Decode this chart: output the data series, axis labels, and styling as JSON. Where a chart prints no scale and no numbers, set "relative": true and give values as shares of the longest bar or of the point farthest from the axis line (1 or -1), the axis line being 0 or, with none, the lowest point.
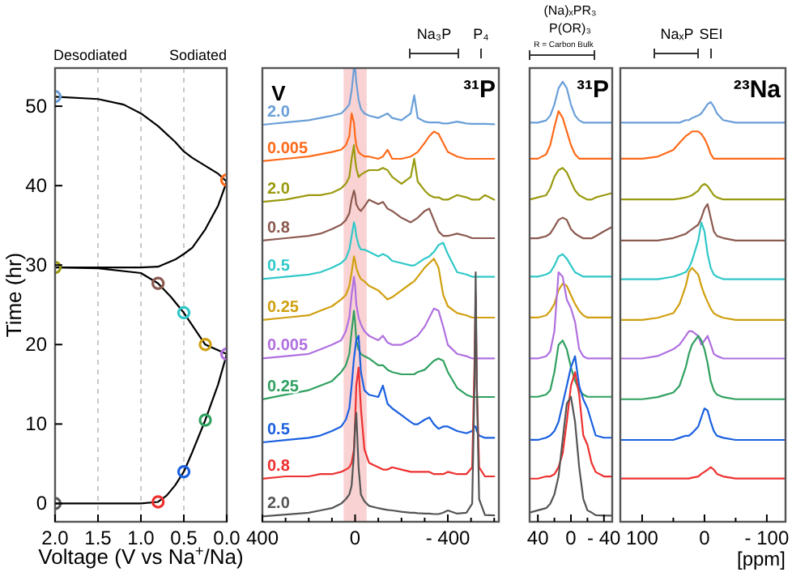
{
  "chart_data": [
    {
      "type": "line",
      "xlabel": "Voltage (V vs Na$^{+}$/Na)",
      "ylabel": "Time (hr)",
      "xlim": [
        2.0,
        0.0
      ],
      "ylim": [
        -2.3,
        54.8
      ],
      "grid": "x",
      "xticks": [
        {
          "value": 2,
          "label": "2.0"
        },
        {
          "value": 1.5,
          "label": "1.5"
        },
        {
          "value": 1,
          "label": "1.0"
        },
        {
          "value": 0.5,
          "label": "0.5"
        },
        {
          "value": 0,
          "label": "0.0"
        }
      ],
      "yticks": [
        0,
        10,
        20,
        30,
        40,
        50
      ],
      "annotations": [
        "Desodiated",
        "Sodiated"
      ],
      "series": [
        {
          "color": "#000000",
          "x": [
            2.0,
            1.5,
            1.0,
            0.8,
            0.7,
            0.6,
            0.5,
            0.4,
            0.25,
            0.1,
            0.0,
            0.25,
            0.5,
            0.65,
            0.8,
            1.0,
            1.5,
            2.0,
            1.5,
            1.0,
            0.8,
            0.6,
            0.5,
            0.4,
            0.25,
            0.1,
            0.0,
            0.1,
            0.25,
            0.4,
            0.5,
            0.6,
            0.8,
            1.0,
            1.2,
            1.5,
            2.0
          ],
          "values": [
            0,
            0,
            0,
            0.2,
            1.0,
            2.3,
            4.0,
            6.5,
            10.5,
            15,
            18.8,
            20,
            24,
            26,
            27.7,
            29.0,
            29.6,
            29.7,
            29.7,
            29.7,
            29.8,
            30.7,
            31.4,
            32.2,
            34.5,
            37.5,
            40.5,
            41.5,
            42.5,
            43.5,
            44.3,
            45.5,
            47.5,
            49.1,
            50.2,
            50.9,
            51.2
          ]
        },
        {
          "type": "scatter",
          "marker": "circle",
          "x": [
            2.0,
            0.8,
            0.5,
            0.25,
            0.0,
            0.25,
            0.5,
            0.8,
            2.0,
            0.0,
            2.0
          ],
          "values": [
            0,
            0.2,
            4.0,
            10.5,
            18.8,
            20,
            24,
            27.7,
            29.7,
            40.7,
            51.2
          ],
          "colors": [
            "#555555",
            "#ee3030",
            "#1a60e0",
            "#30a060",
            "#b070e0",
            "#d0a010",
            "#30c8c8",
            "#8b5a50",
            "#9a9a10",
            "#ff6a1a",
            "#6a9fd8"
          ]
        }
      ]
    },
    {
      "type": "line",
      "relative": true,
      "xlim": [
        400,
        -620
      ],
      "xticks": [
        400,
        {
          "value": 300,
          "label": null
        },
        {
          "value": 200,
          "label": null
        },
        {
          "value": 100,
          "label": null
        },
        0,
        {
          "value": -100,
          "label": null
        },
        {
          "value": -200,
          "label": null
        },
        {
          "value": -300,
          "label": null
        },
        {
          "value": -400,
          "label": "- 400"
        },
        {
          "value": -500,
          "label": null
        },
        {
          "value": -600,
          "label": null
        }
      ],
      "annotations": [
        "V",
        "Na₃P",
        "P₄",
        "³¹P"
      ],
      "bands": [
        {
          "axis": "x",
          "from": 50,
          "to": -50,
          "color": "#f8c8c8"
        }
      ],
      "x": [
        400,
        300,
        200,
        150,
        100,
        60,
        40,
        25,
        15,
        5,
        0,
        -5,
        -15,
        -25,
        -40,
        -60,
        -100,
        -120,
        -140,
        -160,
        -200,
        -240,
        -255,
        -270,
        -300,
        -320,
        -340,
        -360,
        -380,
        -400,
        -440,
        -480,
        -505,
        -515,
        -520,
        -525,
        -535,
        -560,
        -600
      ],
      "series": [
        {
          "name": "2.0",
          "color": "#6a9fd8",
          "values": [
            0.875,
            0.88,
            0.885,
            0.89,
            0.895,
            0.9,
            0.91,
            0.92,
            0.95,
            1.0,
            1.0,
            0.97,
            0.93,
            0.91,
            0.9,
            0.895,
            0.89,
            0.895,
            0.9,
            0.89,
            0.885,
            0.9,
            0.94,
            0.89,
            0.882,
            0.88,
            0.88,
            0.88,
            0.878,
            0.878,
            0.882,
            0.878,
            0.877,
            0.877,
            0.877,
            0.877,
            0.877,
            0.877,
            0.876
          ]
        },
        {
          "name": "0.005",
          "color": "#ff6a1a",
          "values": [
            0.795,
            0.8,
            0.805,
            0.81,
            0.815,
            0.82,
            0.83,
            0.85,
            0.9,
            0.88,
            0.85,
            0.83,
            0.815,
            0.81,
            0.805,
            0.805,
            0.8,
            0.805,
            0.82,
            0.8,
            0.8,
            0.805,
            0.81,
            0.815,
            0.835,
            0.85,
            0.86,
            0.855,
            0.835,
            0.815,
            0.805,
            0.8,
            0.8,
            0.8,
            0.8,
            0.8,
            0.8,
            0.8,
            0.8
          ]
        },
        {
          "name": "2.0",
          "color": "#9a9a10",
          "values": [
            0.705,
            0.71,
            0.72,
            0.72,
            0.725,
            0.735,
            0.745,
            0.76,
            0.8,
            0.83,
            0.8,
            0.78,
            0.76,
            0.765,
            0.77,
            0.775,
            0.775,
            0.78,
            0.775,
            0.76,
            0.745,
            0.76,
            0.8,
            0.75,
            0.73,
            0.72,
            0.715,
            0.715,
            0.71,
            0.71,
            0.72,
            0.715,
            0.71,
            0.71,
            0.71,
            0.71,
            0.71,
            0.72,
            0.71
          ]
        },
        {
          "name": "0.8",
          "color": "#8b5a50",
          "values": [
            0.62,
            0.625,
            0.63,
            0.635,
            0.645,
            0.655,
            0.665,
            0.68,
            0.71,
            0.73,
            0.72,
            0.7,
            0.69,
            0.685,
            0.695,
            0.71,
            0.7,
            0.705,
            0.69,
            0.685,
            0.67,
            0.66,
            0.665,
            0.67,
            0.685,
            0.69,
            0.665,
            0.64,
            0.63,
            0.63,
            0.635,
            0.63,
            0.625,
            0.625,
            0.625,
            0.625,
            0.625,
            0.625,
            0.625
          ]
        },
        {
          "name": "0.5",
          "color": "#30c8c8",
          "values": [
            0.535,
            0.54,
            0.545,
            0.55,
            0.56,
            0.57,
            0.58,
            0.6,
            0.63,
            0.66,
            0.65,
            0.63,
            0.61,
            0.6,
            0.6,
            0.595,
            0.585,
            0.59,
            0.585,
            0.575,
            0.57,
            0.565,
            0.565,
            0.57,
            0.58,
            0.585,
            0.595,
            0.61,
            0.615,
            0.59,
            0.55,
            0.545,
            0.54,
            0.54,
            0.54,
            0.54,
            0.54,
            0.54,
            0.54
          ]
        },
        {
          "name": "0.25",
          "color": "#d0a010",
          "values": [
            0.445,
            0.45,
            0.455,
            0.465,
            0.475,
            0.49,
            0.5,
            0.52,
            0.55,
            0.585,
            0.575,
            0.56,
            0.545,
            0.535,
            0.53,
            0.52,
            0.51,
            0.5,
            0.49,
            0.495,
            0.51,
            0.525,
            0.53,
            0.54,
            0.56,
            0.57,
            0.58,
            0.56,
            0.5,
            0.475,
            0.46,
            0.455,
            0.45,
            0.45,
            0.45,
            0.45,
            0.45,
            0.45,
            0.45
          ]
        },
        {
          "name": "0.005",
          "color": "#b070e0",
          "values": [
            0.36,
            0.365,
            0.37,
            0.38,
            0.39,
            0.4,
            0.42,
            0.45,
            0.5,
            0.54,
            0.52,
            0.48,
            0.45,
            0.435,
            0.42,
            0.41,
            0.4,
            0.41,
            0.395,
            0.39,
            0.39,
            0.4,
            0.405,
            0.41,
            0.43,
            0.45,
            0.47,
            0.465,
            0.43,
            0.39,
            0.37,
            0.365,
            0.36,
            0.36,
            0.36,
            0.36,
            0.36,
            0.36,
            0.36
          ]
        },
        {
          "name": "0.25",
          "color": "#30a060",
          "values": [
            0.27,
            0.28,
            0.29,
            0.3,
            0.31,
            0.33,
            0.345,
            0.37,
            0.42,
            0.465,
            0.44,
            0.4,
            0.38,
            0.37,
            0.365,
            0.36,
            0.345,
            0.345,
            0.335,
            0.33,
            0.325,
            0.325,
            0.325,
            0.33,
            0.335,
            0.345,
            0.355,
            0.36,
            0.355,
            0.33,
            0.295,
            0.28,
            0.275,
            0.275,
            0.275,
            0.275,
            0.275,
            0.275,
            0.275
          ]
        },
        {
          "name": "0.5",
          "color": "#1a60e0",
          "values": [
            0.175,
            0.18,
            0.185,
            0.19,
            0.2,
            0.21,
            0.225,
            0.25,
            0.3,
            0.36,
            0.38,
            0.4,
            0.41,
            0.33,
            0.29,
            0.28,
            0.275,
            0.3,
            0.26,
            0.25,
            0.235,
            0.22,
            0.215,
            0.215,
            0.225,
            0.23,
            0.215,
            0.205,
            0.21,
            0.21,
            0.2,
            0.195,
            0.2,
            0.21,
            0.21,
            0.2,
            0.19,
            0.185,
            0.185
          ]
        },
        {
          "name": "0.8",
          "color": "#ee3030",
          "values": [
            0.095,
            0.1,
            0.1,
            0.105,
            0.105,
            0.11,
            0.115,
            0.12,
            0.13,
            0.16,
            0.22,
            0.3,
            0.34,
            0.25,
            0.16,
            0.13,
            0.12,
            0.115,
            0.115,
            0.12,
            0.115,
            0.11,
            0.11,
            0.11,
            0.11,
            0.11,
            0.105,
            0.105,
            0.105,
            0.11,
            0.105,
            0.105,
            0.12,
            0.35,
            0.5,
            0.3,
            0.12,
            0.1,
            0.1
          ]
        },
        {
          "name": "2.0",
          "color": "#555555",
          "values": [
            0.012,
            0.016,
            0.02,
            0.025,
            0.03,
            0.04,
            0.05,
            0.06,
            0.08,
            0.15,
            0.21,
            0.24,
            0.12,
            0.06,
            0.045,
            0.035,
            0.03,
            0.028,
            0.026,
            0.025,
            0.022,
            0.02,
            0.02,
            0.019,
            0.018,
            0.018,
            0.017,
            0.017,
            0.02,
            0.025,
            0.018,
            0.02,
            0.04,
            0.3,
            0.55,
            0.3,
            0.05,
            0.015,
            0.014
          ]
        }
      ]
    },
    {
      "type": "line",
      "relative": true,
      "xlim": [
        50,
        -50
      ],
      "xticks": [
        40,
        {
          "value": 20,
          "label": null
        },
        0,
        {
          "value": -20,
          "label": null
        },
        {
          "value": -40,
          "label": "- 40"
        }
      ],
      "annotations": [
        "(Na)ₓPR₃",
        "P(OR)₃",
        "R = Carbon Bulk",
        "³¹P"
      ],
      "x": [
        50,
        40,
        30,
        25,
        20,
        15,
        10,
        5,
        0,
        -5,
        -10,
        -15,
        -20,
        -25,
        -30,
        -40,
        -50
      ],
      "series": [
        {
          "color": "#6a9fd8",
          "values": [
            0.907,
            0.907,
            0.912,
            0.923,
            0.948,
            0.985,
            1.0,
            0.985,
            0.948,
            0.923,
            0.912,
            0.907,
            0.907,
            0.907,
            0.907,
            0.907,
            0.907
          ]
        },
        {
          "color": "#ff6a1a",
          "values": [
            0.825,
            0.825,
            0.835,
            0.856,
            0.897,
            0.933,
            0.918,
            0.887,
            0.856,
            0.835,
            0.825,
            0.825,
            0.825,
            0.825,
            0.825,
            0.825,
            0.825
          ]
        },
        {
          "color": "#9a9a10",
          "values": [
            0.732,
            0.737,
            0.742,
            0.758,
            0.784,
            0.799,
            0.804,
            0.794,
            0.773,
            0.753,
            0.742,
            0.737,
            0.732,
            0.732,
            0.737,
            0.742,
            0.747
          ]
        },
        {
          "color": "#8b5a50",
          "values": [
            0.644,
            0.644,
            0.649,
            0.655,
            0.67,
            0.686,
            0.691,
            0.686,
            0.665,
            0.655,
            0.649,
            0.644,
            0.644,
            0.644,
            0.649,
            0.66,
            0.67
          ]
        },
        {
          "color": "#30c8c8",
          "values": [
            0.557,
            0.557,
            0.562,
            0.567,
            0.582,
            0.603,
            0.608,
            0.598,
            0.582,
            0.567,
            0.562,
            0.557,
            0.557,
            0.557,
            0.557,
            0.557,
            0.557
          ]
        },
        {
          "color": "#d0a010",
          "values": [
            0.464,
            0.464,
            0.469,
            0.479,
            0.495,
            0.526,
            0.541,
            0.536,
            0.515,
            0.495,
            0.479,
            0.469,
            0.464,
            0.464,
            0.464,
            0.464,
            0.464
          ]
        },
        {
          "color": "#b070e0",
          "values": [
            0.371,
            0.371,
            0.376,
            0.387,
            0.433,
            0.567,
            0.557,
            0.505,
            0.485,
            0.454,
            0.392,
            0.376,
            0.371,
            0.371,
            0.371,
            0.371,
            0.371
          ]
        },
        {
          "color": "#30a060",
          "values": [
            0.284,
            0.284,
            0.289,
            0.299,
            0.34,
            0.402,
            0.412,
            0.392,
            0.351,
            0.32,
            0.299,
            0.289,
            0.284,
            0.284,
            0.284,
            0.284,
            0.284
          ]
        },
        {
          "color": "#1a60e0",
          "values": [
            0.186,
            0.186,
            0.191,
            0.196,
            0.206,
            0.227,
            0.268,
            0.309,
            0.351,
            0.376,
            0.309,
            0.278,
            0.258,
            0.227,
            0.196,
            0.191,
            0.191
          ]
        },
        {
          "color": "#ee3030",
          "values": [
            0.098,
            0.098,
            0.103,
            0.103,
            0.108,
            0.124,
            0.155,
            0.227,
            0.309,
            0.34,
            0.289,
            0.196,
            0.175,
            0.134,
            0.113,
            0.103,
            0.103
          ]
        },
        {
          "color": "#555555",
          "values": [
            0.021,
            0.026,
            0.031,
            0.041,
            0.062,
            0.103,
            0.186,
            0.268,
            0.284,
            0.227,
            0.124,
            0.052,
            0.026,
            0.021,
            0.015,
            0.014,
            0.014
          ]
        }
      ]
    },
    {
      "type": "line",
      "relative": true,
      "xlim": [
        135,
        -130
      ],
      "xlabel": "[ppm]",
      "xticks": [
        100,
        {
          "value": 50,
          "label": null
        },
        0,
        {
          "value": -50,
          "label": null
        },
        {
          "value": -100,
          "label": "- 100"
        }
      ],
      "annotations": [
        "NaₓP",
        "SEI",
        "²³Na"
      ],
      "x": [
        135,
        100,
        75,
        50,
        40,
        30,
        25,
        20,
        10,
        5,
        0,
        -5,
        -10,
        -15,
        -20,
        -30,
        -50,
        -75,
        -100,
        -130
      ],
      "series": [
        {
          "color": "#6a9fd8",
          "values": [
            0.951,
            0.951,
            0.951,
            0.951,
            0.951,
            0.957,
            0.957,
            0.962,
            0.968,
            0.973,
            0.984,
            0.995,
            1.0,
            0.989,
            0.973,
            0.957,
            0.951,
            0.951,
            0.951,
            0.951
          ]
        },
        {
          "color": "#ff6a1a",
          "values": [
            0.865,
            0.865,
            0.87,
            0.886,
            0.903,
            0.919,
            0.924,
            0.93,
            0.93,
            0.924,
            0.913,
            0.897,
            0.876,
            0.865,
            0.865,
            0.865,
            0.865,
            0.865,
            0.865,
            0.865
          ]
        },
        {
          "color": "#9a9a10",
          "values": [
            0.768,
            0.768,
            0.768,
            0.768,
            0.77,
            0.773,
            0.775,
            0.778,
            0.789,
            0.8,
            0.805,
            0.8,
            0.789,
            0.778,
            0.773,
            0.768,
            0.768,
            0.768,
            0.768,
            0.768
          ]
        },
        {
          "color": "#8b5a50",
          "values": [
            0.67,
            0.67,
            0.67,
            0.676,
            0.681,
            0.686,
            0.692,
            0.697,
            0.708,
            0.724,
            0.746,
            0.757,
            0.724,
            0.692,
            0.681,
            0.676,
            0.67,
            0.67,
            0.67,
            0.67
          ]
        },
        {
          "color": "#30c8c8",
          "values": [
            0.578,
            0.578,
            0.578,
            0.584,
            0.589,
            0.595,
            0.605,
            0.622,
            0.67,
            0.713,
            0.692,
            0.638,
            0.605,
            0.589,
            0.584,
            0.578,
            0.578,
            0.578,
            0.578,
            0.578
          ]
        },
        {
          "color": "#d0a010",
          "values": [
            0.481,
            0.481,
            0.486,
            0.497,
            0.519,
            0.562,
            0.595,
            0.605,
            0.589,
            0.562,
            0.541,
            0.524,
            0.508,
            0.497,
            0.492,
            0.486,
            0.481,
            0.481,
            0.481,
            0.481
          ]
        },
        {
          "color": "#b070e0",
          "values": [
            0.389,
            0.389,
            0.395,
            0.411,
            0.422,
            0.443,
            0.454,
            0.454,
            0.443,
            0.422,
            0.432,
            0.443,
            0.422,
            0.4,
            0.395,
            0.389,
            0.389,
            0.389,
            0.389,
            0.389
          ]
        },
        {
          "color": "#30a060",
          "values": [
            0.292,
            0.292,
            0.297,
            0.308,
            0.324,
            0.368,
            0.4,
            0.422,
            0.443,
            0.432,
            0.411,
            0.378,
            0.335,
            0.313,
            0.303,
            0.297,
            0.292,
            0.292,
            0.292,
            0.292
          ]
        },
        {
          "color": "#1a60e0",
          "values": [
            0.195,
            0.195,
            0.195,
            0.195,
            0.2,
            0.205,
            0.205,
            0.211,
            0.227,
            0.249,
            0.27,
            0.265,
            0.238,
            0.216,
            0.205,
            0.2,
            0.195,
            0.195,
            0.195,
            0.195
          ]
        },
        {
          "color": "#ee3030",
          "values": [
            0.103,
            0.103,
            0.103,
            0.103,
            0.103,
            0.103,
            0.103,
            0.105,
            0.108,
            0.114,
            0.119,
            0.124,
            0.13,
            0.124,
            0.114,
            0.108,
            0.103,
            0.103,
            0.103,
            0.103
          ]
        }
      ]
    }
  ]
}
